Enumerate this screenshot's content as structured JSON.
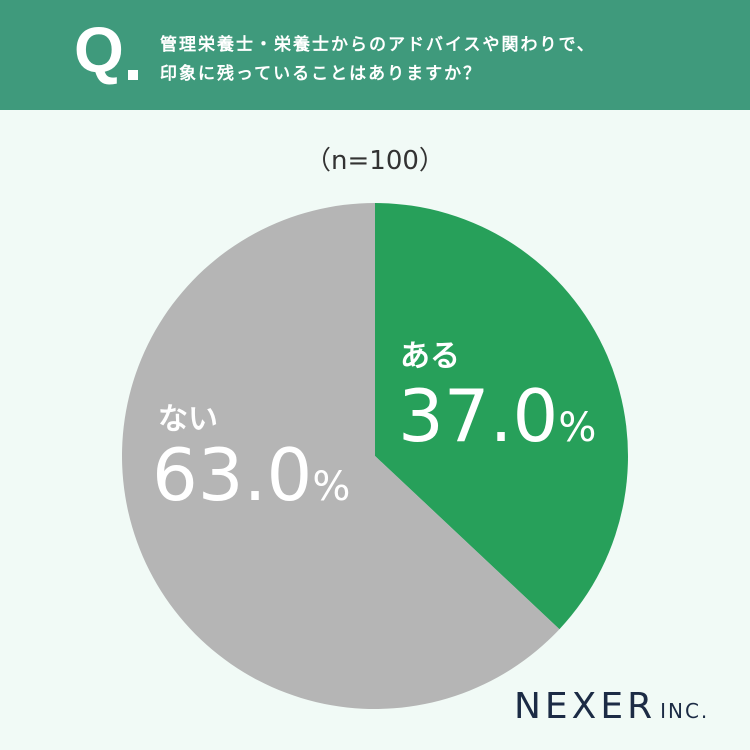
{
  "header": {
    "q_mark": "Q",
    "question_line1": "管理栄養士・栄養士からのアドバイスや関わりで、",
    "question_line2": "印象に残っていることはありますか？"
  },
  "sample_size": "（n=100）",
  "chart_data": {
    "type": "pie",
    "slices": [
      {
        "label": "ある",
        "value": 37.0,
        "display": "37.0",
        "color": "#27a05a"
      },
      {
        "label": "ない",
        "value": 63.0,
        "display": "63.0",
        "color": "#b5b5b5"
      }
    ],
    "unit": "%"
  },
  "logo": {
    "main": "NEXER",
    "suffix": "INC."
  }
}
